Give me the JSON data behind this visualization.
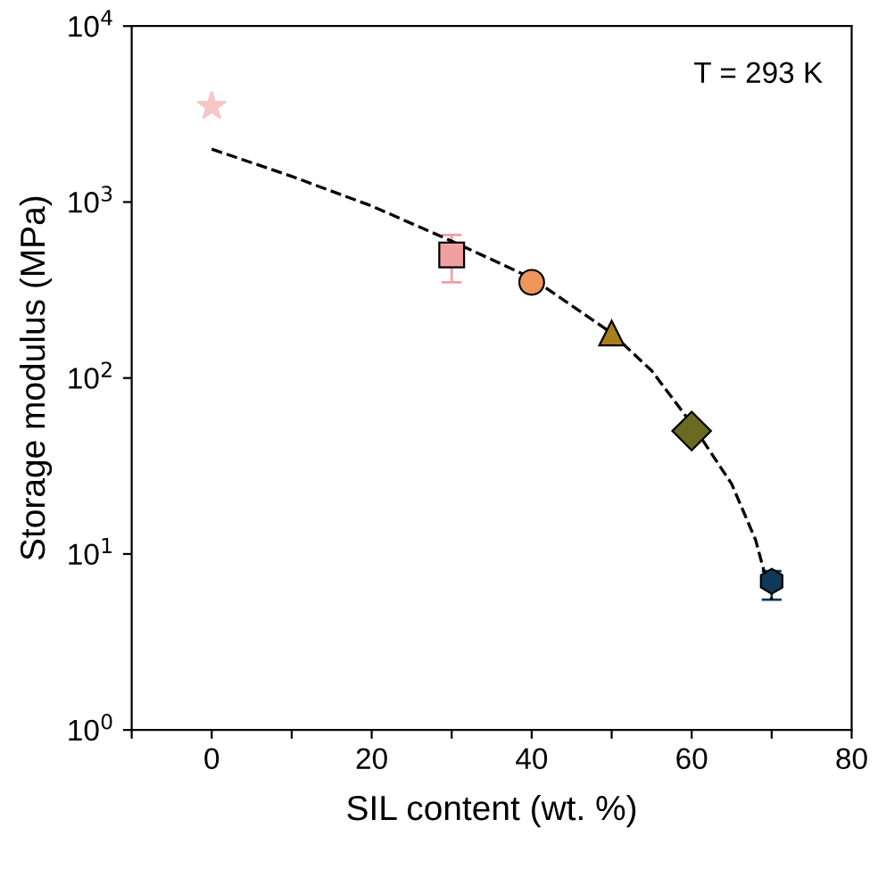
{
  "chart_data": {
    "type": "scatter",
    "xlabel": "SIL content (wt. %)",
    "ylabel": "Storage modulus (MPa)",
    "log": "y",
    "xlim": [
      -10,
      80
    ],
    "xticks": [
      {
        "value": -10,
        "label": null
      },
      0,
      {
        "value": 10,
        "label": null
      },
      20,
      {
        "value": 30,
        "label": null
      },
      40,
      {
        "value": 50,
        "label": null
      },
      60,
      {
        "value": 70,
        "label": null
      },
      80
    ],
    "ylim": [
      1,
      10000
    ],
    "yticks": [
      {
        "value": 1,
        "label": "10$^{0}$"
      },
      {
        "value": 10,
        "label": "10$^{1}$"
      },
      {
        "value": 100,
        "label": "10$^{2}$"
      },
      {
        "value": 1000,
        "label": "10$^{3}$"
      },
      {
        "value": 10000,
        "label": "10$^{4}$"
      }
    ],
    "grid": false,
    "annotations": [
      "T = 293 K"
    ],
    "series": [
      {
        "marker": "star",
        "color": "#f7c6c6",
        "x": [
          0
        ],
        "values": [
          3500
        ]
      },
      {
        "marker": "square",
        "color": "#f0a0a0",
        "x": [
          30
        ],
        "values": [
          500
        ],
        "errors": [
          [
            350,
            650
          ]
        ]
      },
      {
        "marker": "circle",
        "color": "#f0965a",
        "x": [
          40
        ],
        "values": [
          350
        ]
      },
      {
        "marker": "triangle",
        "color": "#a6801e",
        "x": [
          50
        ],
        "values": [
          180
        ]
      },
      {
        "marker": "diamond",
        "color": "#6b6a22",
        "x": [
          60
        ],
        "values": [
          50
        ]
      },
      {
        "color": "#0f3a57",
        "x": [
          70
        ],
        "values": [
          7
        ],
        "errors": [
          [
            5.5,
            8
          ]
        ]
      },
      {
        "type": "line",
        "line_style": "dashed",
        "marker": "none",
        "color": "#000000",
        "x": [
          0,
          10,
          20,
          30,
          40,
          50,
          55,
          60,
          65,
          68,
          70
        ],
        "values": [
          2000,
          1400,
          950,
          600,
          370,
          180,
          110,
          55,
          25,
          12,
          5.5
        ]
      }
    ]
  }
}
